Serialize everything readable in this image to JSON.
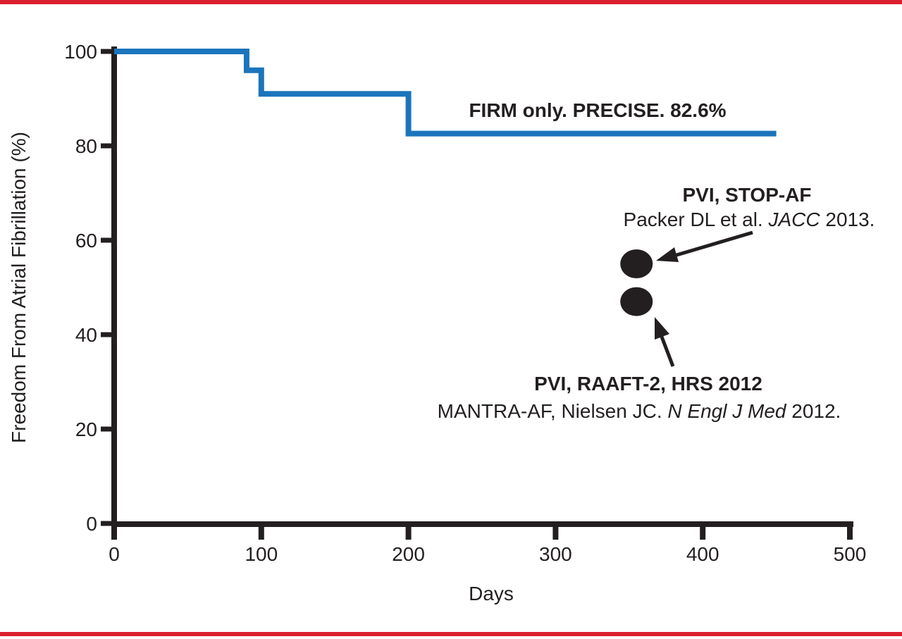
{
  "figure": {
    "background": "#ffffff",
    "border_color": "#db1f2e",
    "ink_color": "#231f20",
    "curve_color": "#1b75bc"
  },
  "chart_data": {
    "type": "line",
    "subtype": "kaplan-meier-step",
    "title": "",
    "xlabel": "Days",
    "ylabel": "Freedom From Atrial Fibrillation (%)",
    "xlim": [
      0,
      500
    ],
    "ylim": [
      0,
      100
    ],
    "x_ticks": [
      0,
      100,
      200,
      300,
      400,
      500
    ],
    "y_ticks": [
      0,
      20,
      40,
      60,
      80,
      100
    ],
    "grid": false,
    "legend_position": "none",
    "series": [
      {
        "name": "FIRM only (PRECISE)",
        "label": "FIRM only. PRECISE. 82.6%",
        "color": "#1b75bc",
        "final_value_pct": 82.6,
        "step_points": [
          [
            0,
            100
          ],
          [
            90,
            100
          ],
          [
            90,
            96
          ],
          [
            100,
            96
          ],
          [
            100,
            91
          ],
          [
            200,
            91
          ],
          [
            200,
            82.6
          ],
          [
            450,
            82.6
          ]
        ]
      }
    ],
    "scatter_markers": [
      {
        "label": "PVI, STOP-AF",
        "x_days": 355,
        "y_pct": 55,
        "color": "#231f20"
      },
      {
        "label": "PVI, RAAFT-2 / MANTRA-AF",
        "x_days": 355,
        "y_pct": 47,
        "color": "#231f20"
      }
    ]
  },
  "labels": {
    "series_label": "FIRM only. PRECISE. 82.6%",
    "x_axis": "Days",
    "y_axis": "Freedom From Atrial Fibrillation (%)"
  },
  "annotations": [
    {
      "title": "PVI, STOP-AF",
      "subtitle_segments": [
        {
          "text": "Packer DL et al. ",
          "italic": false
        },
        {
          "text": "JACC",
          "italic": true
        },
        {
          "text": " 2013.",
          "italic": false
        }
      ]
    },
    {
      "title": "PVI, RAAFT-2, HRS 2012",
      "subtitle_segments": [
        {
          "text": "MANTRA-AF, Nielsen JC. ",
          "italic": false
        },
        {
          "text": "N Engl J Med",
          "italic": true
        },
        {
          "text": " 2012.",
          "italic": false
        }
      ]
    }
  ]
}
